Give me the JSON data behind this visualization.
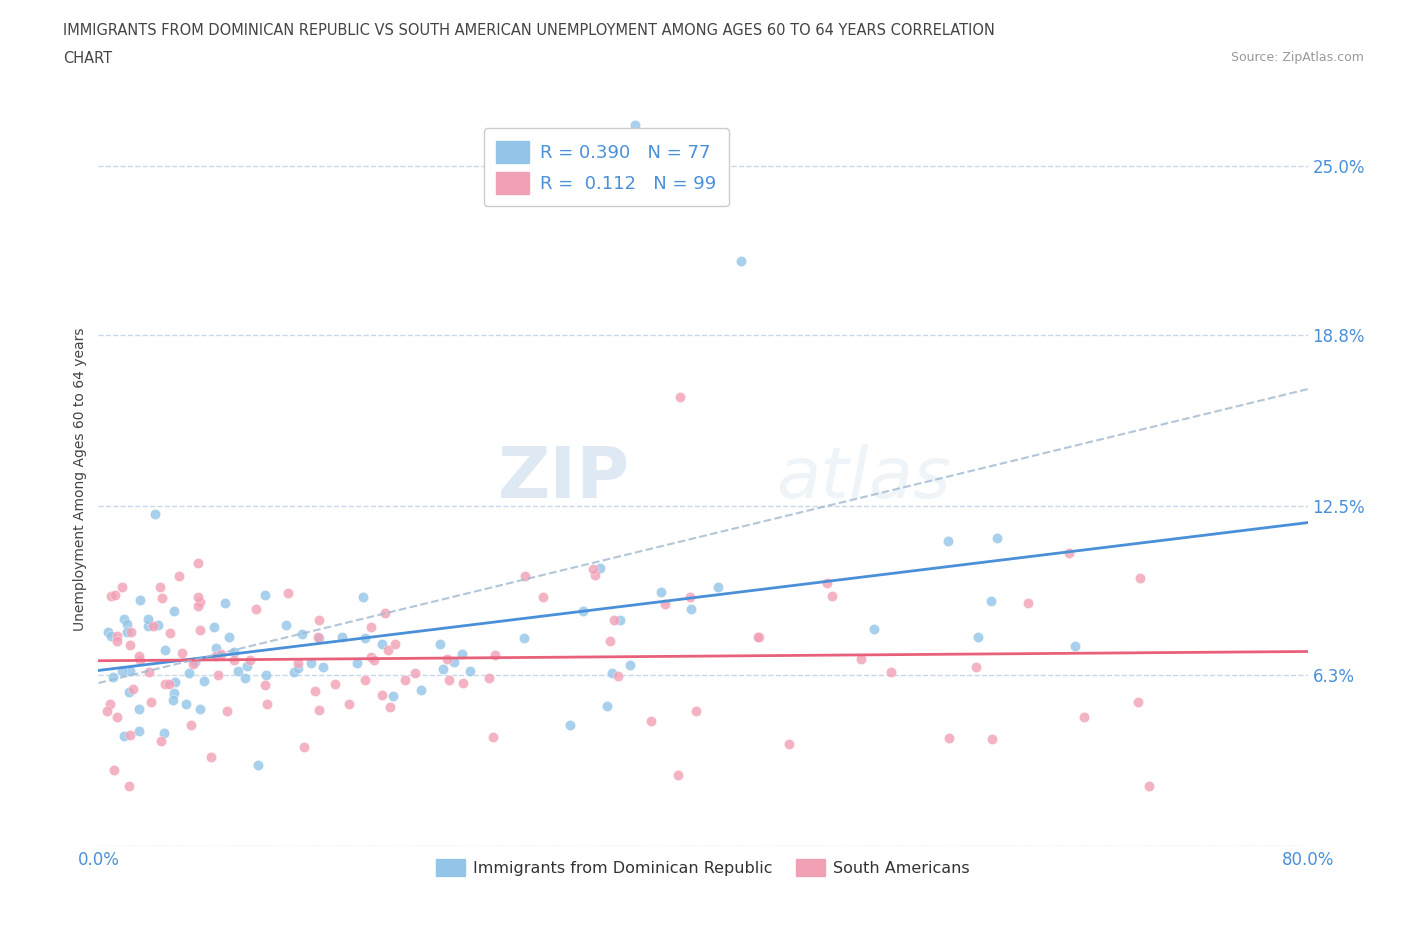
{
  "title_line1": "IMMIGRANTS FROM DOMINICAN REPUBLIC VS SOUTH AMERICAN UNEMPLOYMENT AMONG AGES 60 TO 64 YEARS CORRELATION",
  "title_line2": "CHART",
  "source": "Source: ZipAtlas.com",
  "ylabel": "Unemployment Among Ages 60 to 64 years",
  "xlim": [
    0.0,
    0.8
  ],
  "ylim": [
    0.0,
    0.27
  ],
  "color_dr": "#92c5e8",
  "color_sa": "#f2a0b5",
  "line_color_dr": "#4a90d9",
  "line_color_sa": "#e8607a",
  "line_color_dash": "#a0b8d0",
  "R_dr": 0.39,
  "N_dr": 77,
  "R_sa": 0.112,
  "N_sa": 99,
  "legend_labels": [
    "Immigrants from Dominican Republic",
    "South Americans"
  ],
  "watermark_zip": "ZIP",
  "watermark_atlas": "atlas",
  "background_color": "#ffffff",
  "grid_color": "#c8d8e8",
  "title_color": "#444444",
  "tick_color": "#4a90d9",
  "ylabel_color": "#444444"
}
